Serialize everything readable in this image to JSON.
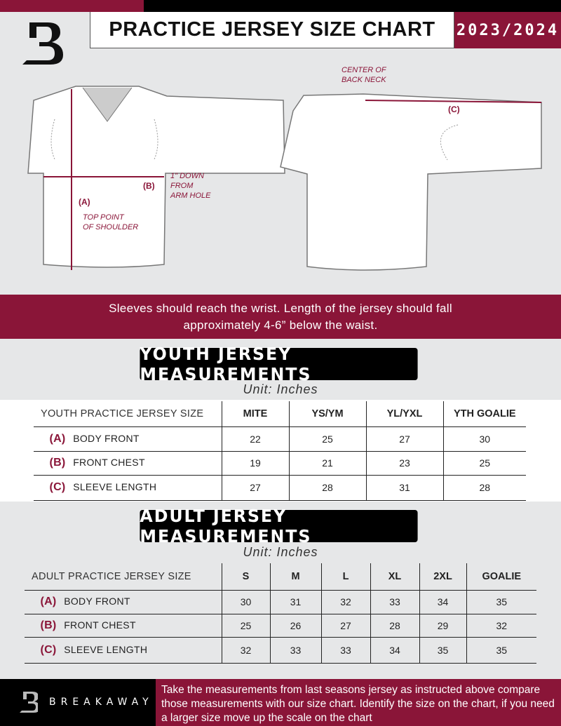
{
  "header": {
    "title": "PRACTICE JERSEY SIZE CHART",
    "season": "2023/2024",
    "logo_letter": "B"
  },
  "diagram": {
    "front": {
      "label_a": "(A)",
      "label_a_desc": "TOP POINT\nOF SHOULDER",
      "label_b": "(B)",
      "label_b_desc": "1\" DOWN\nFROM\nARM HOLE"
    },
    "back": {
      "label_c": "(C)",
      "label_c_desc": "CENTER OF\nBACK NECK"
    }
  },
  "banner": {
    "line1": "Sleeves should reach the wrist. Length of the jersey should fall",
    "line2": "approximately 4-6” below the waist."
  },
  "youth": {
    "title": "YOUTH JERSEY MEASUREMENTS",
    "unit": "Unit: Inches",
    "columns": [
      "YOUTH PRACTICE JERSEY SIZE",
      "MITE",
      "YS/YM",
      "YL/YXL",
      "YTH GOALIE"
    ],
    "rows": [
      {
        "code": "(A)",
        "name": "BODY FRONT",
        "values": [
          "22",
          "25",
          "27",
          "30"
        ]
      },
      {
        "code": "(B)",
        "name": "FRONT CHEST",
        "values": [
          "19",
          "21",
          "23",
          "25"
        ]
      },
      {
        "code": "(C)",
        "name": "SLEEVE LENGTH",
        "values": [
          "27",
          "28",
          "31",
          "28"
        ]
      }
    ]
  },
  "adult": {
    "title": "ADULT JERSEY MEASUREMENTS",
    "unit": "Unit: Inches",
    "columns": [
      "ADULT PRACTICE JERSEY SIZE",
      "S",
      "M",
      "L",
      "XL",
      "2XL",
      "GOALIE"
    ],
    "rows": [
      {
        "code": "(A)",
        "name": "BODY FRONT",
        "values": [
          "30",
          "31",
          "32",
          "33",
          "34",
          "35"
        ]
      },
      {
        "code": "(B)",
        "name": "FRONT CHEST",
        "values": [
          "25",
          "26",
          "27",
          "28",
          "29",
          "32"
        ]
      },
      {
        "code": "(C)",
        "name": "SLEEVE LENGTH",
        "values": [
          "32",
          "33",
          "33",
          "34",
          "35",
          "35"
        ]
      }
    ]
  },
  "footer": {
    "brand": "BREAKAWAY",
    "text": "Take the measurements from last seasons jersey as instructed above compare those measurements  with our size chart. Identify the size on the chart, if you need a larger size move up the scale on the chart"
  },
  "colors": {
    "accent": "#8a1538",
    "background": "#e6e7e8"
  }
}
